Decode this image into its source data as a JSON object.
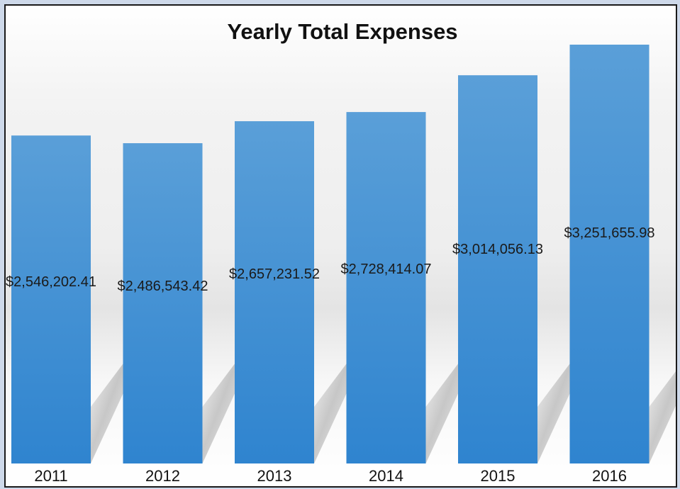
{
  "chart_data": {
    "type": "bar",
    "title": "Yearly Total Expenses",
    "xlabel": "",
    "ylabel": "",
    "categories": [
      "2011",
      "2012",
      "2013",
      "2014",
      "2015",
      "2016"
    ],
    "values": [
      2546202.41,
      2486543.42,
      2657231.52,
      2728414.07,
      3014056.13,
      3251655.98
    ],
    "data_labels": [
      "$2,546,202.41",
      "$2,486,543.42",
      "$2,657,231.52",
      "$2,728,414.07",
      "$3,014,056.13",
      "$3,251,655.98"
    ],
    "ylim": [
      0,
      3251655.98
    ],
    "grid": false,
    "legend": "none",
    "bar_color": "#4a95d6",
    "bar_color_top": "#5a9fd8",
    "bar_color_bottom": "#2f84cf",
    "background_color": "#ced9ea"
  }
}
